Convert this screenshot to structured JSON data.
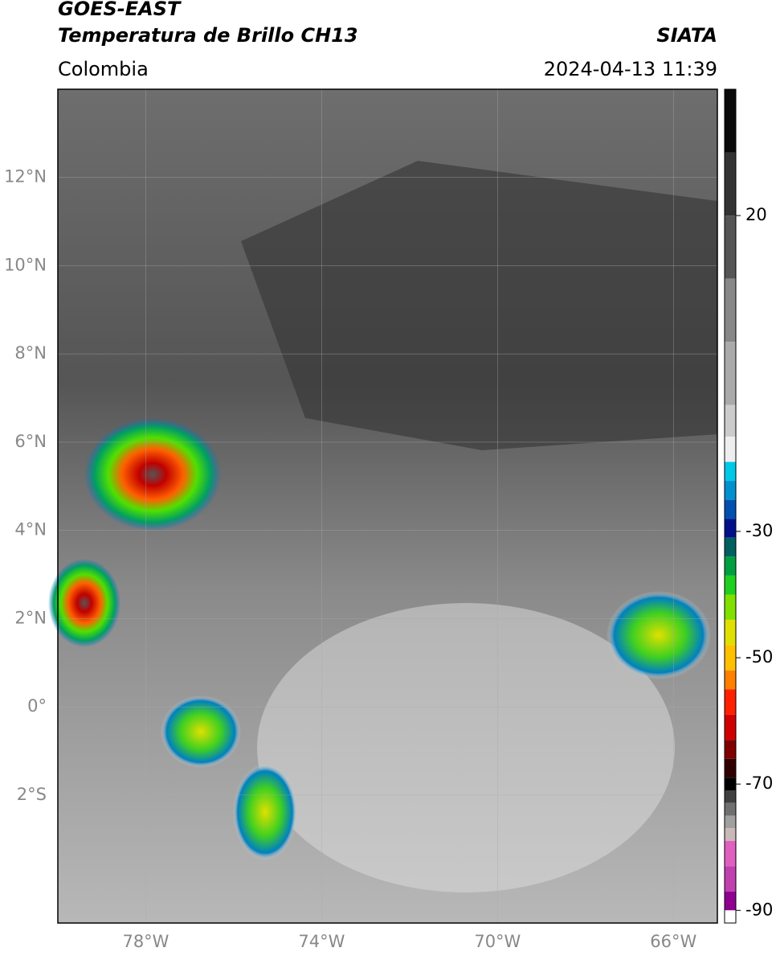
{
  "header": {
    "satellite": "GOES-EAST",
    "product": "Temperatura de Brillo CH13",
    "region": "Colombia",
    "source": "SIATA",
    "datetime": "2024-04-13 11:39"
  },
  "map": {
    "xlim": [
      -80,
      -65
    ],
    "ylim": [
      -4.9,
      14
    ],
    "grid": true,
    "xticks": [
      {
        "value": -78,
        "label": "78°W"
      },
      {
        "value": -74,
        "label": "74°W"
      },
      {
        "value": -70,
        "label": "70°W"
      },
      {
        "value": -66,
        "label": "66°W"
      }
    ],
    "yticks": [
      {
        "value": 12,
        "label": "12°N"
      },
      {
        "value": 10,
        "label": "10°N"
      },
      {
        "value": 8,
        "label": "8°N"
      },
      {
        "value": 6,
        "label": "6°N"
      },
      {
        "value": 4,
        "label": "4°N"
      },
      {
        "value": 2,
        "label": "2°N"
      },
      {
        "value": 0,
        "label": "0°"
      },
      {
        "value": -2,
        "label": "2°S"
      }
    ]
  },
  "colorbar": {
    "lim": [
      -92,
      40
    ],
    "ticks": [
      20,
      -30,
      -50,
      -70,
      -90
    ],
    "colors": [
      {
        "value": 40,
        "color": "#0a0a0a"
      },
      {
        "value": 30,
        "color": "#333333"
      },
      {
        "value": 20,
        "color": "#555555"
      },
      {
        "value": 10,
        "color": "#888888"
      },
      {
        "value": 0,
        "color": "#aaaaaa"
      },
      {
        "value": -10,
        "color": "#cccccc"
      },
      {
        "value": -15,
        "color": "#eeeeee"
      },
      {
        "value": -19,
        "color": "#00c8e8"
      },
      {
        "value": -22,
        "color": "#0090d0"
      },
      {
        "value": -25,
        "color": "#0050b0"
      },
      {
        "value": -28,
        "color": "#00108a"
      },
      {
        "value": -31,
        "color": "#006060"
      },
      {
        "value": -34,
        "color": "#00a040"
      },
      {
        "value": -37,
        "color": "#20d020"
      },
      {
        "value": -40,
        "color": "#80e000"
      },
      {
        "value": -44,
        "color": "#e0e000"
      },
      {
        "value": -48,
        "color": "#ffc000"
      },
      {
        "value": -52,
        "color": "#ff8000"
      },
      {
        "value": -55,
        "color": "#ff2000"
      },
      {
        "value": -59,
        "color": "#d00000"
      },
      {
        "value": -63,
        "color": "#800000"
      },
      {
        "value": -66,
        "color": "#300000"
      },
      {
        "value": -69,
        "color": "#000000"
      },
      {
        "value": -71,
        "color": "#404040"
      },
      {
        "value": -73,
        "color": "#707070"
      },
      {
        "value": -75,
        "color": "#a0a0a0"
      },
      {
        "value": -77,
        "color": "#c8b8b8"
      },
      {
        "value": -79,
        "color": "#e060c0"
      },
      {
        "value": -83,
        "color": "#c040b0"
      },
      {
        "value": -87,
        "color": "#900090"
      },
      {
        "value": -90,
        "color": "#ffffff"
      }
    ]
  }
}
